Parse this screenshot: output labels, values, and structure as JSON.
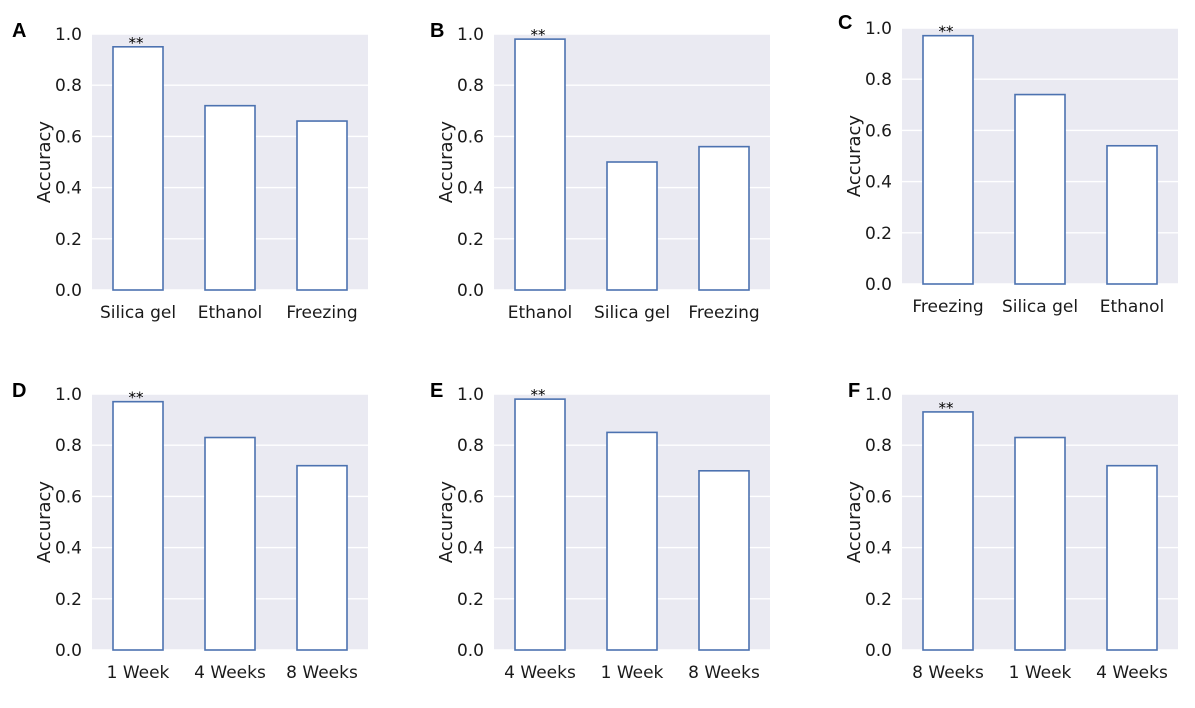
{
  "colors": {
    "plot_background": "#eaeaf2",
    "bar_edge": "#4c72b0",
    "bar_fill": "#ffffff",
    "grid": "#ffffff"
  },
  "chart_data": [
    {
      "panel": "A",
      "type": "bar",
      "categories": [
        "Silica gel",
        "Ethanol",
        "Freezing"
      ],
      "values": [
        0.95,
        0.72,
        0.66
      ],
      "annotations": [
        "**",
        "",
        ""
      ],
      "title": "",
      "xlabel": "",
      "ylabel": "Accuracy",
      "ylim": [
        0,
        1.0
      ],
      "yticks": [
        "0.0",
        "0.2",
        "0.4",
        "0.6",
        "0.8",
        "1.0"
      ],
      "grid": true
    },
    {
      "panel": "B",
      "type": "bar",
      "categories": [
        "Ethanol",
        "Silica gel",
        "Freezing"
      ],
      "values": [
        0.98,
        0.5,
        0.56
      ],
      "annotations": [
        "**",
        "",
        ""
      ],
      "title": "",
      "xlabel": "",
      "ylabel": "Accuracy",
      "ylim": [
        0,
        1.0
      ],
      "yticks": [
        "0.0",
        "0.2",
        "0.4",
        "0.6",
        "0.8",
        "1.0"
      ],
      "grid": true
    },
    {
      "panel": "C",
      "type": "bar",
      "categories": [
        "Freezing",
        "Silica gel",
        "Ethanol"
      ],
      "values": [
        0.97,
        0.74,
        0.54
      ],
      "annotations": [
        "**",
        "",
        ""
      ],
      "title": "",
      "xlabel": "",
      "ylabel": "Accuracy",
      "ylim": [
        0,
        1.0
      ],
      "yticks": [
        "0.0",
        "0.2",
        "0.4",
        "0.6",
        "0.8",
        "1.0"
      ],
      "grid": true
    },
    {
      "panel": "D",
      "type": "bar",
      "categories": [
        "1 Week",
        "4 Weeks",
        "8 Weeks"
      ],
      "values": [
        0.97,
        0.83,
        0.72
      ],
      "annotations": [
        "**",
        "",
        ""
      ],
      "title": "",
      "xlabel": "",
      "ylabel": "Accuracy",
      "ylim": [
        0,
        1.0
      ],
      "yticks": [
        "0.0",
        "0.2",
        "0.4",
        "0.6",
        "0.8",
        "1.0"
      ],
      "grid": true
    },
    {
      "panel": "E",
      "type": "bar",
      "categories": [
        "4 Weeks",
        "1 Week",
        "8 Weeks"
      ],
      "values": [
        0.98,
        0.85,
        0.7
      ],
      "annotations": [
        "**",
        "",
        ""
      ],
      "title": "",
      "xlabel": "",
      "ylabel": "Accuracy",
      "ylim": [
        0,
        1.0
      ],
      "yticks": [
        "0.0",
        "0.2",
        "0.4",
        "0.6",
        "0.8",
        "1.0"
      ],
      "grid": true
    },
    {
      "panel": "F",
      "type": "bar",
      "categories": [
        "8 Weeks",
        "1 Week",
        "4 Weeks"
      ],
      "values": [
        0.93,
        0.83,
        0.72
      ],
      "annotations": [
        "**",
        "",
        ""
      ],
      "title": "",
      "xlabel": "",
      "ylabel": "Accuracy",
      "ylim": [
        0,
        1.0
      ],
      "yticks": [
        "0.0",
        "0.2",
        "0.4",
        "0.6",
        "0.8",
        "1.0"
      ],
      "grid": true
    }
  ]
}
